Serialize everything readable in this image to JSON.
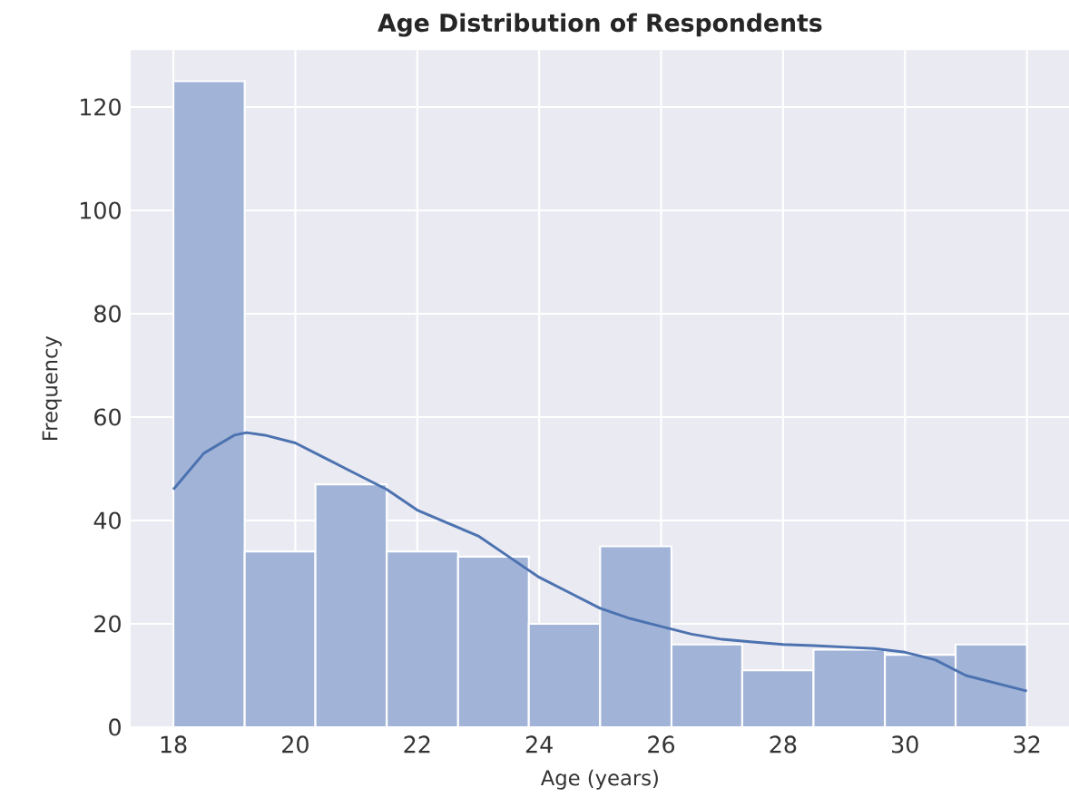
{
  "chart_data": {
    "type": "histogram",
    "title": "Age Distribution of Respondents",
    "xlabel": "Age (years)",
    "ylabel": "Frequency",
    "bins": [
      18,
      19.17,
      20.33,
      21.5,
      22.67,
      23.83,
      25,
      26.17,
      27.33,
      28.5,
      29.67,
      30.83,
      32
    ],
    "values": [
      125,
      34,
      47,
      34,
      33,
      20,
      35,
      16,
      11,
      15,
      14,
      16
    ],
    "color": "#a1b4d8",
    "series": [
      {
        "type": "line",
        "color": "#4c72b0",
        "x": [
          18,
          18.5,
          19,
          19.2,
          19.5,
          20,
          20.5,
          21,
          21.5,
          22,
          22.5,
          23,
          23.5,
          24,
          24.5,
          25,
          25.5,
          26,
          26.5,
          27,
          27.5,
          28,
          28.5,
          29,
          29.5,
          30,
          30.5,
          31,
          31.5,
          32
        ],
        "values": [
          46,
          53,
          56.5,
          57,
          56.5,
          55,
          52,
          49,
          46,
          42,
          39.5,
          37,
          33,
          29,
          26,
          23,
          21,
          19.5,
          18,
          17,
          16.5,
          16,
          15.8,
          15.5,
          15.2,
          14.5,
          13,
          10,
          8.5,
          7
        ]
      }
    ],
    "xlim": [
      17.3,
      32.7
    ],
    "ylim": [
      0,
      131
    ],
    "xticks": [
      18,
      20,
      22,
      24,
      26,
      28,
      30,
      32
    ],
    "yticks": [
      0,
      20,
      40,
      60,
      80,
      100,
      120
    ],
    "grid": true
  }
}
